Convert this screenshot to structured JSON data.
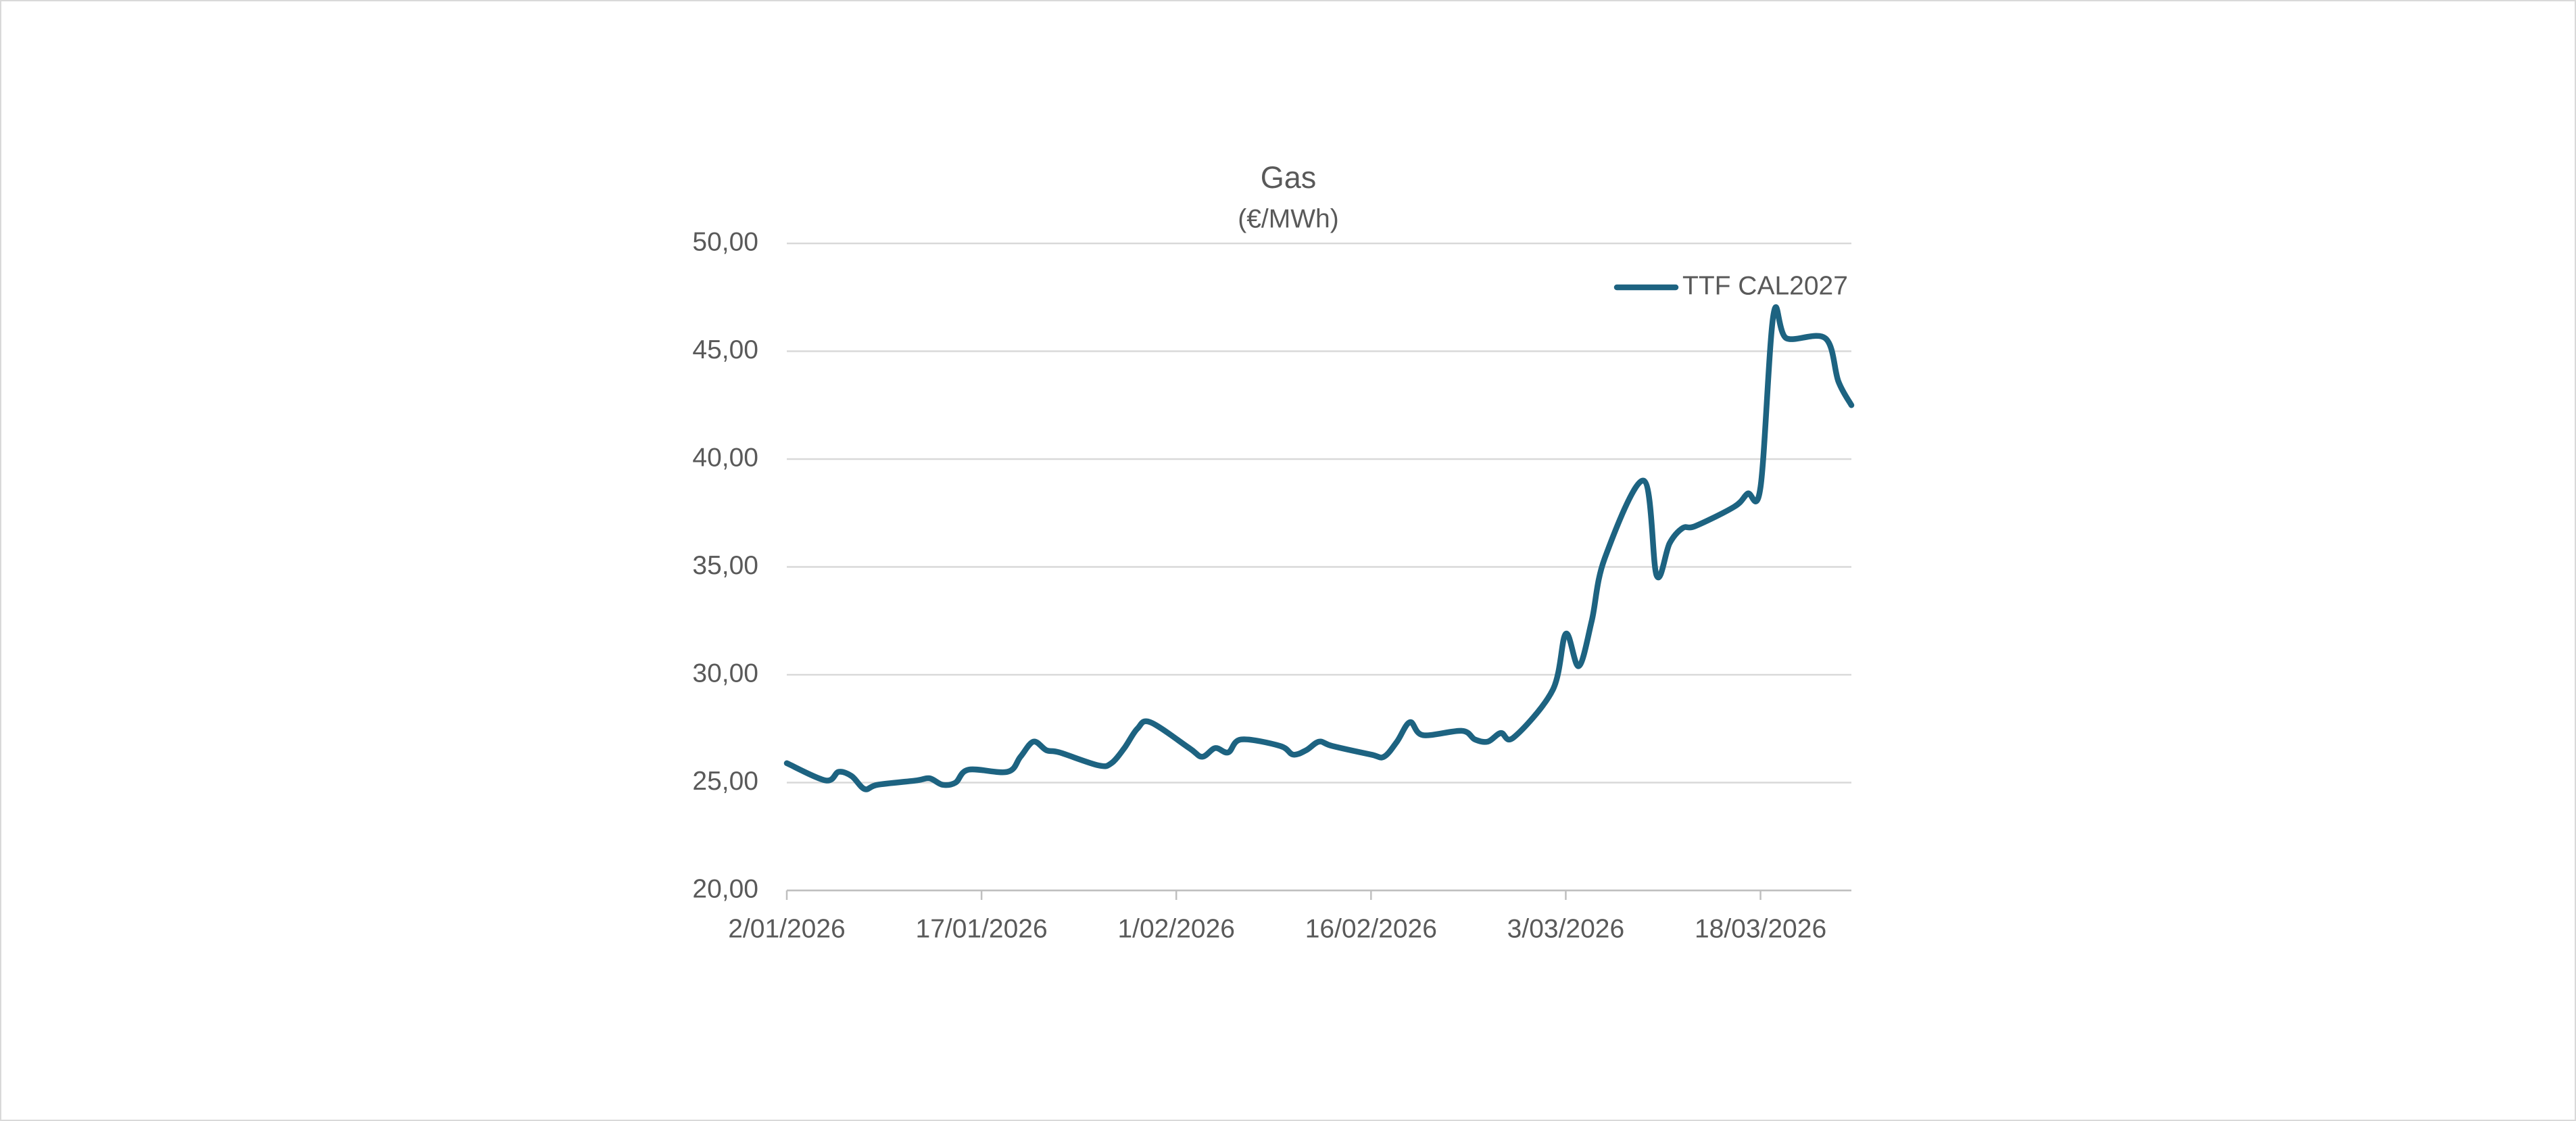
{
  "chart_data": {
    "type": "line",
    "title": "Gas",
    "subtitle": "(€/MWh)",
    "x": [
      "2026-01-02",
      "2026-01-05",
      "2026-01-06",
      "2026-01-07",
      "2026-01-08",
      "2026-01-09",
      "2026-01-12",
      "2026-01-13",
      "2026-01-14",
      "2026-01-15",
      "2026-01-16",
      "2026-01-19",
      "2026-01-20",
      "2026-01-21",
      "2026-01-22",
      "2026-01-23",
      "2026-01-26",
      "2026-01-27",
      "2026-01-28",
      "2026-01-29",
      "2026-01-30",
      "2026-02-02",
      "2026-02-03",
      "2026-02-04",
      "2026-02-05",
      "2026-02-06",
      "2026-02-09",
      "2026-02-10",
      "2026-02-11",
      "2026-02-12",
      "2026-02-13",
      "2026-02-16",
      "2026-02-17",
      "2026-02-18",
      "2026-02-19",
      "2026-02-20",
      "2026-02-23",
      "2026-02-24",
      "2026-02-25",
      "2026-02-26",
      "2026-02-27",
      "2026-03-02",
      "2026-03-03",
      "2026-03-04",
      "2026-03-05",
      "2026-03-06",
      "2026-03-09",
      "2026-03-10",
      "2026-03-11",
      "2026-03-12",
      "2026-03-13",
      "2026-03-16",
      "2026-03-17",
      "2026-03-18",
      "2026-03-19",
      "2026-03-20",
      "2026-03-23",
      "2026-03-24",
      "2026-03-25"
    ],
    "series": [
      {
        "name": "TTF CAL2027",
        "color": "#1d6381",
        "values": [
          25.9,
          25.1,
          25.5,
          25.3,
          24.7,
          24.9,
          25.1,
          25.2,
          24.9,
          25.0,
          25.6,
          25.5,
          26.2,
          26.9,
          26.5,
          26.4,
          25.8,
          25.9,
          26.6,
          27.5,
          27.8,
          26.6,
          26.2,
          26.6,
          26.4,
          27.0,
          26.7,
          26.3,
          26.5,
          26.9,
          26.7,
          26.3,
          26.2,
          26.9,
          27.8,
          27.2,
          27.4,
          27.0,
          26.9,
          27.3,
          27.1,
          29.3,
          31.9,
          30.4,
          32.5,
          35.4,
          39.0,
          34.6,
          36.1,
          36.8,
          36.9,
          37.8,
          38.4,
          38.7,
          46.7,
          45.6,
          45.6,
          43.6,
          42.5
        ]
      }
    ],
    "xlim": [
      "2026-01-02",
      "2026-03-25"
    ],
    "xticks": [
      {
        "value": "2026-01-02",
        "label": "2/01/2026"
      },
      {
        "value": "2026-01-17",
        "label": "17/01/2026"
      },
      {
        "value": "2026-02-01",
        "label": "1/02/2026"
      },
      {
        "value": "2026-02-16",
        "label": "16/02/2026"
      },
      {
        "value": "2026-03-03",
        "label": "3/03/2026"
      },
      {
        "value": "2026-03-18",
        "label": "18/03/2026"
      }
    ],
    "ylim": [
      20,
      50
    ],
    "yticks": [
      {
        "value": 20,
        "label": "20,00"
      },
      {
        "value": 25,
        "label": "25,00"
      },
      {
        "value": 30,
        "label": "30,00"
      },
      {
        "value": 35,
        "label": "35,00"
      },
      {
        "value": 40,
        "label": "40,00"
      },
      {
        "value": 45,
        "label": "45,00"
      },
      {
        "value": 50,
        "label": "50,00"
      }
    ],
    "grid": true,
    "legend": "top-right"
  }
}
